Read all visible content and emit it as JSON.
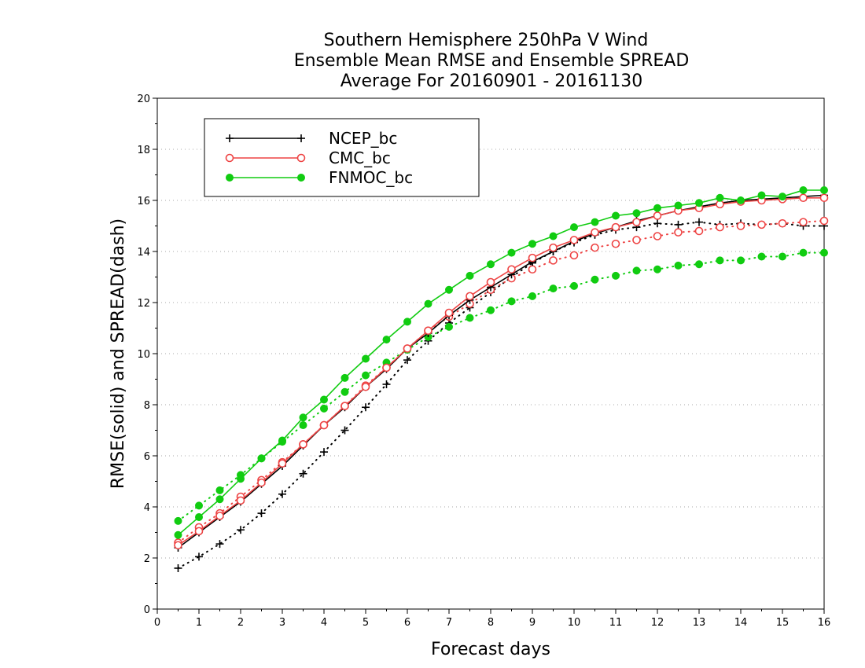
{
  "chart_data": {
    "type": "line",
    "title": [
      "Southern Hemisphere 250hPa V Wind",
      "Ensemble Mean RMSE and Ensemble SPREAD",
      "Average For 20160901 - 20161130"
    ],
    "xlabel": "Forecast days",
    "ylabel": "RMSE(solid) and SPREAD(dash)",
    "xlim": [
      0,
      16
    ],
    "ylim": [
      0,
      20
    ],
    "xticks": [
      0,
      1,
      2,
      3,
      4,
      5,
      6,
      7,
      8,
      9,
      10,
      11,
      12,
      13,
      14,
      15,
      16
    ],
    "yticks": [
      0,
      2,
      4,
      6,
      8,
      10,
      12,
      14,
      16,
      18,
      20
    ],
    "grid": true,
    "legend_position": "top-left",
    "x": [
      0.5,
      1,
      1.5,
      2,
      2.5,
      3,
      3.5,
      4,
      4.5,
      5,
      5.5,
      6,
      6.5,
      7,
      7.5,
      8,
      8.5,
      9,
      9.5,
      10,
      10.5,
      11,
      11.5,
      12,
      12.5,
      13,
      13.5,
      14,
      14.5,
      15,
      15.5,
      16
    ],
    "series": [
      {
        "name": "NCEP_bc",
        "color": "#000000",
        "marker": "plus",
        "rmse": [
          2.4,
          3.0,
          3.6,
          4.2,
          4.9,
          5.6,
          6.4,
          7.2,
          7.9,
          8.7,
          9.4,
          10.2,
          10.8,
          11.5,
          12.1,
          12.6,
          13.1,
          13.6,
          14.0,
          14.4,
          14.7,
          14.95,
          15.2,
          15.4,
          15.6,
          15.75,
          15.9,
          16.0,
          16.05,
          16.1,
          16.15,
          16.2
        ],
        "spread": [
          1.6,
          2.05,
          2.55,
          3.1,
          3.75,
          4.5,
          5.3,
          6.15,
          7.0,
          7.9,
          8.8,
          9.75,
          10.5,
          11.2,
          11.8,
          12.4,
          13.0,
          13.55,
          14.0,
          14.35,
          14.65,
          14.85,
          14.95,
          15.1,
          15.05,
          15.15,
          15.05,
          15.1,
          15.05,
          15.1,
          15.0,
          15.0
        ]
      },
      {
        "name": "CMC_bc",
        "color": "#ee4444",
        "marker": "open-circle",
        "rmse": [
          2.5,
          3.05,
          3.65,
          4.25,
          4.95,
          5.7,
          6.45,
          7.2,
          7.95,
          8.7,
          9.45,
          10.2,
          10.9,
          11.6,
          12.25,
          12.8,
          13.3,
          13.75,
          14.15,
          14.45,
          14.75,
          14.95,
          15.15,
          15.4,
          15.6,
          15.7,
          15.85,
          15.95,
          16.0,
          16.05,
          16.1,
          16.1
        ],
        "spread": [
          2.6,
          3.2,
          3.75,
          4.4,
          5.05,
          5.75,
          6.45,
          7.2,
          7.95,
          8.75,
          9.45,
          10.2,
          10.9,
          11.45,
          11.95,
          12.5,
          12.95,
          13.3,
          13.65,
          13.85,
          14.15,
          14.3,
          14.45,
          14.6,
          14.75,
          14.8,
          14.95,
          15.0,
          15.05,
          15.1,
          15.15,
          15.2
        ]
      },
      {
        "name": "FNMOC_bc",
        "color": "#11cc11",
        "marker": "filled-circle",
        "rmse": [
          2.9,
          3.6,
          4.3,
          5.1,
          5.9,
          6.6,
          7.5,
          8.2,
          9.05,
          9.8,
          10.55,
          11.25,
          11.95,
          12.5,
          13.05,
          13.5,
          13.95,
          14.3,
          14.6,
          14.95,
          15.15,
          15.4,
          15.5,
          15.7,
          15.8,
          15.9,
          16.1,
          16.0,
          16.2,
          16.15,
          16.4,
          16.4
        ],
        "spread": [
          3.45,
          4.05,
          4.65,
          5.25,
          5.9,
          6.55,
          7.2,
          7.85,
          8.5,
          9.15,
          9.65,
          10.15,
          10.65,
          11.05,
          11.4,
          11.7,
          12.05,
          12.25,
          12.55,
          12.65,
          12.9,
          13.05,
          13.25,
          13.3,
          13.45,
          13.5,
          13.65,
          13.65,
          13.8,
          13.8,
          13.95,
          13.95
        ]
      }
    ]
  }
}
